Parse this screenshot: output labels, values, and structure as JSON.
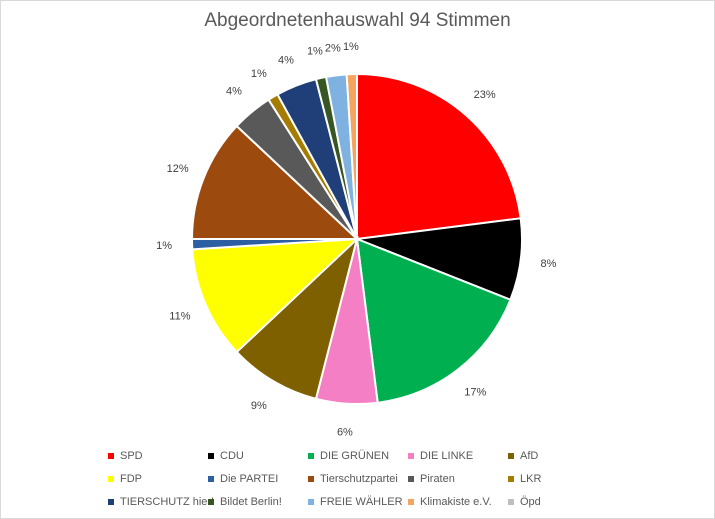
{
  "chart_data": {
    "type": "pie",
    "title": "Abgeordnetenhauswahl 94 Stimmen",
    "legend_position": "bottom",
    "slices": [
      {
        "label": "SPD",
        "value": 23,
        "value_label": "23%",
        "color": "#ff0000"
      },
      {
        "label": "CDU",
        "value": 8,
        "value_label": "8%",
        "color": "#000000"
      },
      {
        "label": "DIE GRÜNEN",
        "value": 17,
        "value_label": "17%",
        "color": "#00b050"
      },
      {
        "label": "DIE LINKE",
        "value": 6,
        "value_label": "6%",
        "color": "#f57fc4"
      },
      {
        "label": "AfD",
        "value": 9,
        "value_label": "9%",
        "color": "#7f6000"
      },
      {
        "label": "FDP",
        "value": 11,
        "value_label": "11%",
        "color": "#ffff00"
      },
      {
        "label": "Die PARTEI",
        "value": 1,
        "value_label": "1%",
        "color": "#2e5fa3"
      },
      {
        "label": "Tierschutzpartei",
        "value": 12,
        "value_label": "12%",
        "color": "#9c4a0e"
      },
      {
        "label": "Piraten",
        "value": 4,
        "value_label": "4%",
        "color": "#595959"
      },
      {
        "label": "LKR",
        "value": 1,
        "value_label": "1%",
        "color": "#a57c00"
      },
      {
        "label": "TIERSCHUTZ hier!",
        "value": 4,
        "value_label": "4%",
        "color": "#203f78"
      },
      {
        "label": "Bildet Berlin!",
        "value": 1,
        "value_label": "1%",
        "color": "#375623"
      },
      {
        "label": "FREIE WÄHLER",
        "value": 2,
        "value_label": "2%",
        "color": "#7fb2e0"
      },
      {
        "label": "Klimakiste e.V.",
        "value": 1,
        "value_label": "1%",
        "color": "#f4a460"
      },
      {
        "label": "Öpd",
        "value": 0,
        "value_label": "",
        "color": "#bfbfbf"
      }
    ]
  }
}
